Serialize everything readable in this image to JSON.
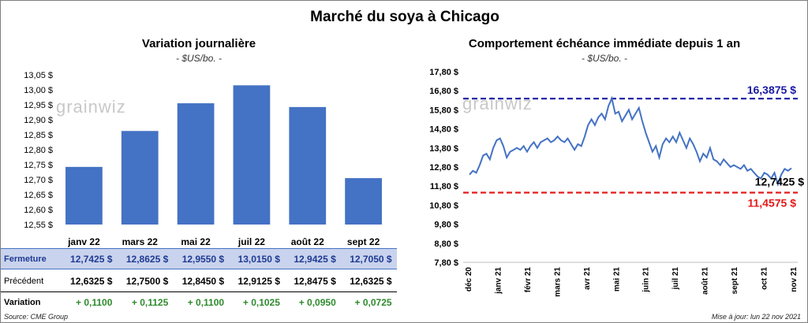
{
  "title": "Marché du soya à Chicago",
  "left_chart": {
    "title": "Variation  journalière",
    "subtitle": "- $US/bo. -",
    "watermark": "grainwiz"
  },
  "right_chart": {
    "title": "Comportement  échéance immédiate depuis 1 an",
    "subtitle": "- $US/bo. -",
    "watermark": "grainwiz"
  },
  "table": {
    "rows": [
      {
        "label": "Fermeture",
        "cells": [
          "12,7425  $",
          "12,8625  $",
          "12,9550  $",
          "13,0150  $",
          "12,9425  $",
          "12,7050  $"
        ]
      },
      {
        "label": "Précédent",
        "cells": [
          "12,6325  $",
          "12,7500  $",
          "12,8450  $",
          "12,9125  $",
          "12,8475  $",
          "12,6325  $"
        ]
      },
      {
        "label": "Variation",
        "cells": [
          "+ 0,1100",
          "+ 0,1125",
          "+ 0,1100",
          "+ 0,1025",
          "+ 0,0950",
          "+ 0,0725"
        ]
      }
    ]
  },
  "footer": {
    "source": "Source: CME Group",
    "updated": "Mise à jour: lun 22 nov 2021"
  },
  "colors": {
    "bar": "#4472c4",
    "line": "#4472c4",
    "high": "#1a1aa6",
    "low": "#e31a1a",
    "variation": "#2e8b2e"
  },
  "chart_data": [
    {
      "type": "bar",
      "categories": [
        "janv 22",
        "mars 22",
        "mai 22",
        "juil 22",
        "août 22",
        "sept 22"
      ],
      "values": [
        12.7425,
        12.8625,
        12.955,
        13.015,
        12.9425,
        12.705
      ],
      "ylim": [
        12.55,
        13.05
      ],
      "yticks": [
        "12,55 $",
        "12,60 $",
        "12,65 $",
        "12,70 $",
        "12,75 $",
        "12,80 $",
        "12,85 $",
        "12,90 $",
        "12,95 $",
        "13,00 $",
        "13,05 $"
      ],
      "grid": false
    },
    {
      "type": "line",
      "x_labels": [
        "déc 20",
        "janv 21",
        "févr 21",
        "mars 21",
        "avr 21",
        "mai 21",
        "juin 21",
        "juil 21",
        "août 21",
        "sept 21",
        "oct 21",
        "nov 21"
      ],
      "ylim": [
        7.8,
        17.8
      ],
      "yticks": [
        "7,80 $",
        "8,80 $",
        "9,80 $",
        "10,80 $",
        "11,80 $",
        "12,80 $",
        "13,80 $",
        "14,80 $",
        "15,80 $",
        "16,80 $",
        "17,80 $"
      ],
      "values": [
        12.4,
        12.6,
        12.5,
        12.9,
        13.4,
        13.5,
        13.2,
        13.8,
        14.2,
        14.3,
        13.9,
        13.3,
        13.6,
        13.7,
        13.8,
        13.7,
        13.9,
        13.6,
        13.9,
        14.1,
        13.8,
        14.1,
        14.2,
        14.3,
        14.1,
        14.2,
        14.4,
        14.2,
        14.1,
        14.3,
        14.0,
        13.7,
        14.0,
        13.9,
        14.4,
        15.0,
        15.3,
        15.0,
        15.4,
        15.6,
        15.3,
        16.0,
        16.4,
        15.6,
        15.7,
        15.2,
        15.5,
        15.8,
        15.3,
        15.6,
        15.9,
        15.2,
        14.6,
        14.1,
        13.6,
        13.9,
        13.3,
        14.0,
        14.3,
        14.1,
        14.4,
        14.1,
        14.6,
        14.2,
        13.8,
        14.3,
        14.0,
        13.6,
        13.1,
        13.5,
        13.3,
        13.8,
        13.2,
        13.1,
        12.9,
        13.2,
        13.0,
        12.8,
        12.9,
        12.8,
        12.7,
        12.9,
        12.6,
        12.7,
        12.5,
        12.3,
        12.2,
        12.5,
        12.4,
        12.2,
        12.5,
        11.9,
        12.4,
        12.7,
        12.6,
        12.74
      ],
      "high_line": {
        "value": 16.3875,
        "label": "16,3875  $"
      },
      "low_line": {
        "value": 11.4575,
        "label": "11,4575  $"
      },
      "last_label": "12,7425 $",
      "grid": false
    }
  ]
}
